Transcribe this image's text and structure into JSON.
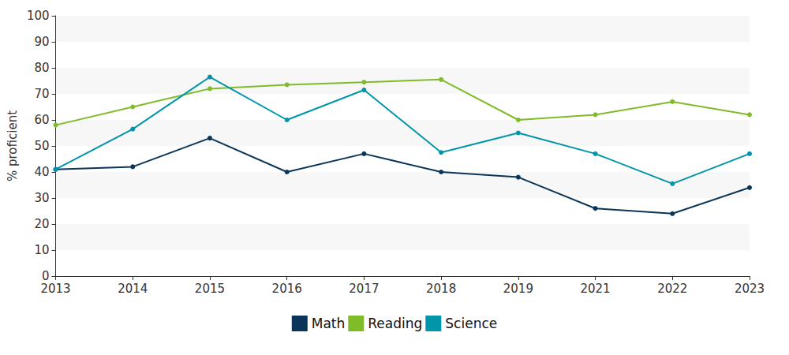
{
  "chart_data": {
    "type": "line",
    "y_label": "% proficient",
    "categories": [
      "2013",
      "2014",
      "2015",
      "2016",
      "2017",
      "2018",
      "2019",
      "2021",
      "2022",
      "2023"
    ],
    "series": [
      {
        "name": "Math",
        "color": "#0b3558",
        "values": [
          41,
          42,
          53,
          40,
          47,
          40,
          38,
          26,
          24,
          34
        ]
      },
      {
        "name": "Reading",
        "color": "#80bc2a",
        "values": [
          58,
          65,
          72,
          73.5,
          74.5,
          75.5,
          60,
          62,
          67,
          62
        ]
      },
      {
        "name": "Science",
        "color": "#0095a8",
        "values": [
          41,
          56.5,
          76.5,
          60,
          71.5,
          47.5,
          55,
          47,
          35.5,
          47
        ]
      }
    ],
    "ylim": [
      0,
      100
    ],
    "yticks": [
      0,
      10,
      20,
      30,
      40,
      50,
      60,
      70,
      80,
      90,
      100
    ],
    "grid": true,
    "legend": "bottom",
    "marker": "circle"
  }
}
